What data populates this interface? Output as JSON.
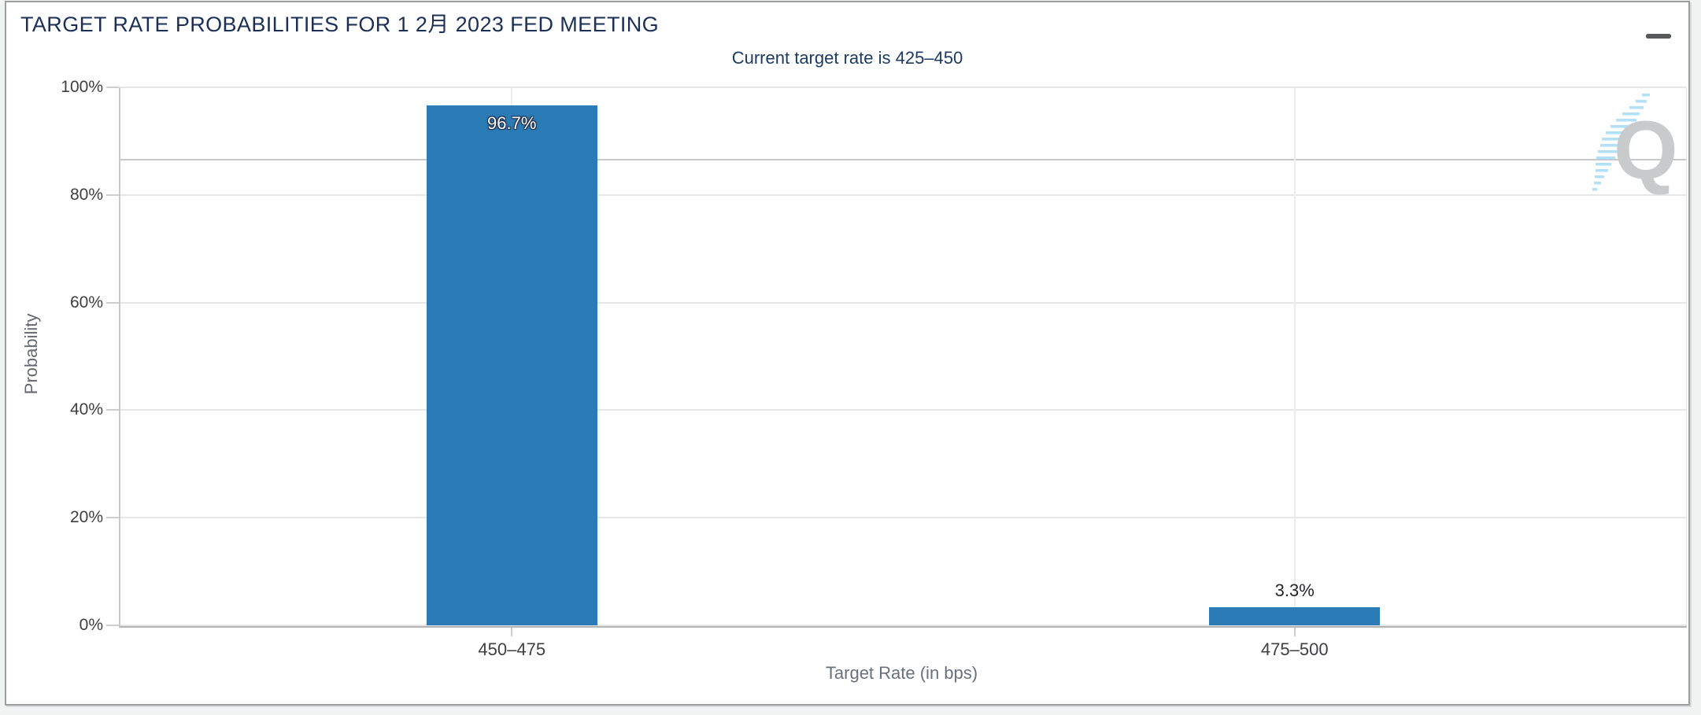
{
  "header": {
    "menu_icon": "hamburger-icon"
  },
  "watermark": {
    "letter": "Q",
    "q_color": "#c9cacb",
    "stripe_color": "#a6dbf8"
  },
  "colors": {
    "bar": "#2b7cb6",
    "title": "#1c3057",
    "subtitle": "#1c3b63",
    "background": "#f1f2f2",
    "panel": "#ffffff",
    "gridline": "#e6e6e6"
  },
  "chart_data": {
    "type": "bar",
    "title": "TARGET RATE PROBABILITIES FOR 1 2月 2023 FED MEETING",
    "subtitle": "Current target rate is 425–450",
    "categories": [
      "450–475",
      "475–500"
    ],
    "values": [
      96.7,
      3.3
    ],
    "value_labels": [
      "96.7%",
      "3.3%"
    ],
    "label_position": [
      "inside",
      "above"
    ],
    "xlabel": "Target Rate (in bps)",
    "ylabel": "Probability",
    "ylim": [
      0,
      100
    ],
    "y_ticks": [
      0,
      20,
      40,
      60,
      80,
      100
    ],
    "y_tick_labels": [
      "0%",
      "20%",
      "40%",
      "60%",
      "80%",
      "100%"
    ],
    "extra_gridline_percent": 86.6,
    "grid": true,
    "legend": "none",
    "bar_color": "#2b7cb6"
  }
}
